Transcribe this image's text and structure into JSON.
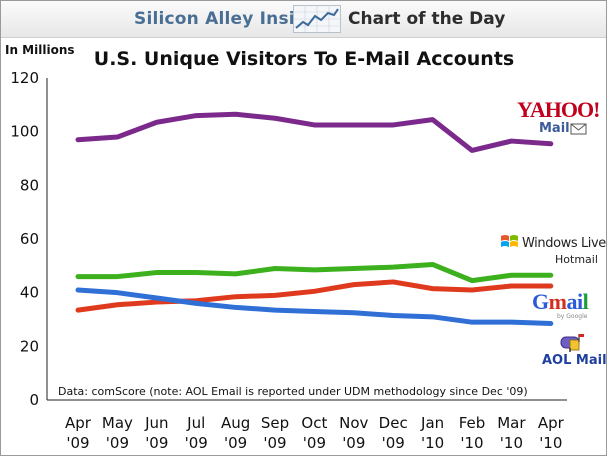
{
  "header": {
    "site_name": "Silicon Alley Insider",
    "section": "Chart of the Day"
  },
  "chart_data": {
    "type": "line",
    "title": "U.S. Unique Visitors To E-Mail Accounts",
    "ylabel": "In Millions",
    "xlabel": "",
    "ylim": [
      0,
      120
    ],
    "yticks": [
      0,
      20,
      40,
      60,
      80,
      100,
      120
    ],
    "grid": false,
    "legend": "inline brand labels at right end of each line",
    "categories": [
      [
        "Apr",
        "'09"
      ],
      [
        "May",
        "'09"
      ],
      [
        "Jun",
        "'09"
      ],
      [
        "Jul",
        "'09"
      ],
      [
        "Aug",
        "'09"
      ],
      [
        "Sep",
        "'09"
      ],
      [
        "Oct",
        "'09"
      ],
      [
        "Nov",
        "'09"
      ],
      [
        "Dec",
        "'09"
      ],
      [
        "Jan",
        "'10"
      ],
      [
        "Feb",
        "'10"
      ],
      [
        "Mar",
        "'10"
      ],
      [
        "Apr",
        "'10"
      ]
    ],
    "series": [
      {
        "name": "Yahoo! Mail",
        "color": "#7b2a8c",
        "values": [
          97,
          98,
          103.5,
          106,
          106.5,
          105,
          102.5,
          102.5,
          102.5,
          104.5,
          93,
          96.5,
          95.5
        ]
      },
      {
        "name": "Windows Live Hotmail",
        "color": "#3cb11d",
        "values": [
          46,
          46,
          47.5,
          47.5,
          47,
          49,
          48.5,
          49,
          49.5,
          50.5,
          44.5,
          46.5,
          46.5
        ]
      },
      {
        "name": "Gmail",
        "color": "#e03a1e",
        "values": [
          33.5,
          35.5,
          36.5,
          37,
          38.5,
          39,
          40.5,
          43,
          44,
          41.5,
          41,
          42.5,
          42.5
        ]
      },
      {
        "name": "AOL Mail",
        "color": "#2f6fd6",
        "values": [
          41,
          40,
          38,
          36,
          34.5,
          33.5,
          33,
          32.5,
          31.5,
          31,
          29,
          29,
          28.5
        ]
      }
    ],
    "source_note": "Data: comScore (note: AOL Email is reported under UDM methodology since Dec '09)"
  },
  "brands": {
    "yahoo": "YAHOO!",
    "yahoo_sub": "Mail",
    "hotmail": "Windows Live",
    "hotmail_sub": "Hotmail",
    "gmail": "Gmail",
    "gmail_sub": "by Google",
    "aol": "AOL Mail"
  }
}
